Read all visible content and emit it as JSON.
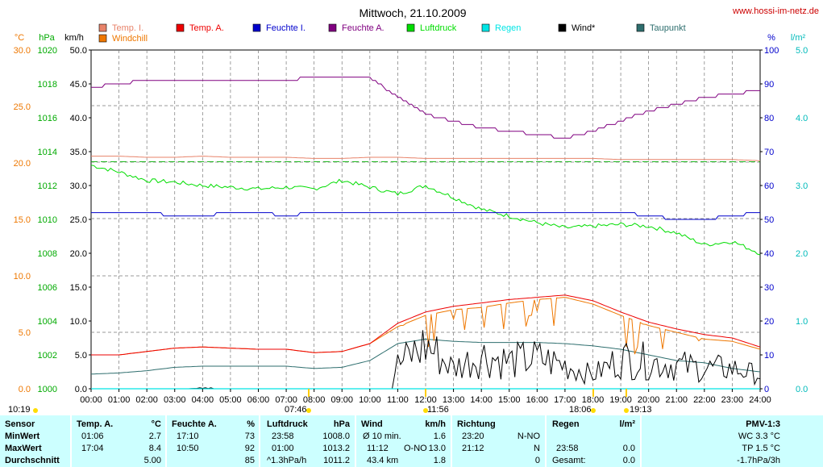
{
  "header": {
    "title": "Mittwoch, 21.10.2009",
    "website": "www.hossi-im-netz.de"
  },
  "chart_data": {
    "type": "line",
    "title": "Mittwoch, 21.10.2009",
    "axes": {
      "temp": {
        "label": "°C",
        "ticks": [
          "30.0",
          "25.0",
          "20.0",
          "15.0",
          "10.0",
          "5.0",
          "0.0"
        ]
      },
      "pressure": {
        "label": "hPa",
        "ticks": [
          "1020",
          "1018",
          "1016",
          "1014",
          "1012",
          "1010",
          "1008",
          "1006",
          "1004",
          "1002",
          "1000"
        ]
      },
      "wind": {
        "label": "km/h",
        "ticks": [
          "50.0",
          "45.0",
          "40.0",
          "35.0",
          "30.0",
          "25.0",
          "20.0",
          "15.0",
          "10.0",
          "5.0",
          "0.0"
        ]
      },
      "humidity": {
        "label": "%",
        "ticks": [
          "100",
          "90",
          "80",
          "70",
          "60",
          "50",
          "40",
          "30",
          "20",
          "10",
          "0"
        ]
      },
      "rain": {
        "label": "l/m²",
        "ticks": [
          "5.0",
          "4.0",
          "3.0",
          "2.0",
          "1.0",
          "0.0"
        ]
      }
    },
    "x_ticks": [
      "00:00",
      "01:00",
      "02:00",
      "03:00",
      "04:00",
      "05:00",
      "06:00",
      "07:00",
      "08:00",
      "09:00",
      "10:00",
      "11:00",
      "12:00",
      "13:00",
      "14:00",
      "15:00",
      "16:00",
      "17:00",
      "18:00",
      "19:00",
      "20:00",
      "21:00",
      "22:00",
      "23:00",
      "24:00"
    ],
    "legend": [
      {
        "name": "Temp. I.",
        "color": "#e8836a"
      },
      {
        "name": "Temp. A.",
        "color": "#ee0000"
      },
      {
        "name": "Feuchte I.",
        "color": "#0000cc"
      },
      {
        "name": "Feuchte A.",
        "color": "#800080"
      },
      {
        "name": "Luftdruck",
        "color": "#00dd00"
      },
      {
        "name": "Regen",
        "color": "#00e5e5"
      },
      {
        "name": "Wind*",
        "color": "#000000"
      },
      {
        "name": "Taupunkt",
        "color": "#2e6e6e"
      },
      {
        "name": "Windchill",
        "color": "#ee7700"
      }
    ],
    "x_hours": [
      0,
      1,
      2,
      3,
      4,
      5,
      6,
      7,
      8,
      9,
      10,
      11,
      12,
      13,
      14,
      15,
      16,
      17,
      18,
      19,
      20,
      21,
      22,
      23,
      24
    ],
    "series": [
      {
        "name": "Temp. I.",
        "unit": "°C",
        "values": [
          20.6,
          20.6,
          20.5,
          20.5,
          20.6,
          20.5,
          20.5,
          20.5,
          20.4,
          20.4,
          20.5,
          20.5,
          20.4,
          20.4,
          20.4,
          20.4,
          20.4,
          20.4,
          20.4,
          20.3,
          20.3,
          20.3,
          20.3,
          20.3,
          20.2
        ]
      },
      {
        "name": "Temp. A.",
        "unit": "°C",
        "values": [
          3.0,
          3.0,
          3.3,
          3.6,
          3.7,
          3.6,
          3.5,
          3.5,
          3.2,
          3.3,
          4.0,
          5.8,
          6.8,
          7.3,
          7.6,
          7.9,
          8.1,
          8.3,
          7.8,
          6.8,
          5.9,
          5.3,
          4.8,
          4.5,
          3.7
        ]
      },
      {
        "name": "Feuchte I.",
        "unit": "%",
        "values": [
          52,
          52,
          52,
          51,
          51,
          52,
          52,
          51,
          52,
          52,
          52,
          52,
          52,
          52,
          52,
          52,
          52,
          52,
          52,
          52,
          51,
          50,
          50,
          51,
          52
        ]
      },
      {
        "name": "Feuchte A.",
        "unit": "%",
        "values": [
          89,
          90,
          91,
          91,
          91,
          91,
          91,
          91,
          92,
          92,
          92,
          86,
          81,
          79,
          77,
          76,
          75,
          74,
          76,
          79,
          82,
          84,
          86,
          87,
          88
        ]
      },
      {
        "name": "Luftdruck",
        "unit": "hPa",
        "values": [
          1013.2,
          1012.8,
          1012.3,
          1012.2,
          1012.0,
          1011.9,
          1011.8,
          1011.9,
          1011.8,
          1012.3,
          1011.9,
          1011.5,
          1012.0,
          1011.3,
          1010.6,
          1010.2,
          1009.8,
          1009.5,
          1009.6,
          1009.7,
          1009.6,
          1009.2,
          1008.5,
          1008.7,
          1008.0
        ]
      },
      {
        "name": "Taupunkt",
        "unit": "°C",
        "values": [
          1.3,
          1.4,
          1.6,
          1.9,
          2.0,
          2.0,
          2.0,
          2.0,
          1.8,
          1.9,
          2.5,
          4.0,
          4.4,
          4.2,
          4.1,
          4.1,
          4.1,
          4.0,
          3.8,
          3.5,
          3.0,
          2.5,
          2.3,
          1.8,
          1.5
        ]
      },
      {
        "name": "Wind*",
        "unit": "km/h",
        "values": [
          0,
          0,
          0,
          0,
          0.5,
          0,
          0,
          0,
          0,
          0,
          0,
          3.5,
          6.5,
          3.0,
          5.0,
          4.0,
          4.5,
          3.5,
          2.0,
          4.5,
          4.0,
          3.5,
          3.0,
          3.0,
          2.0
        ]
      },
      {
        "name": "Windchill",
        "unit": "°C",
        "values": [
          3.0,
          3.0,
          3.3,
          3.6,
          3.7,
          3.6,
          3.5,
          3.5,
          3.2,
          3.3,
          4.0,
          5.5,
          6.5,
          7.0,
          7.2,
          7.6,
          7.9,
          8.1,
          7.5,
          6.5,
          5.6,
          5.0,
          4.4,
          4.2,
          3.5
        ]
      },
      {
        "name": "Regen",
        "unit": "l/m²",
        "values": [
          0,
          0,
          0,
          0,
          0,
          0,
          0,
          0,
          0,
          0,
          0,
          0,
          0,
          0,
          0,
          0,
          0,
          0,
          0,
          0,
          0,
          0,
          0,
          0,
          0
        ]
      }
    ],
    "markers": [
      {
        "label": "10:19",
        "kind": "sunrise-left"
      },
      {
        "label": "07:46",
        "kind": "sunrise"
      },
      {
        "label": "11:56",
        "kind": "noon"
      },
      {
        "label": "18:06",
        "kind": "sunset"
      },
      {
        "label": "19:13",
        "kind": "moonset"
      }
    ]
  },
  "table": {
    "row_labels": [
      "Sensor",
      "MinWert",
      "MaxWert",
      "Durchschnitt"
    ],
    "temp": {
      "head": "Temp. A.",
      "unit": "°C",
      "min_time": "01:06",
      "min": "2.7",
      "max_time": "17:04",
      "max": "8.4",
      "avg": "5.00"
    },
    "hum": {
      "head": "Feuchte A.",
      "unit": "%",
      "min_time": "17:10",
      "min": "73",
      "max_time": "10:50",
      "max": "92",
      "avg": "85"
    },
    "pres": {
      "head": "Luftdruck",
      "unit": "hPa",
      "min_time": "23:58",
      "min": "1008.0",
      "max_time": "01:00",
      "max": "1013.2",
      "trend": "^1.3hPa/h",
      "avg": "1011.2"
    },
    "wind": {
      "head": "Wind",
      "unit": "km/h",
      "r1_label": "Ø 10 min.",
      "r1": "1.6",
      "r2_time": "11:12",
      "r2_dir": "O-NO",
      "r2": "13.0",
      "r3_label": "43.4 km",
      "r3": "1.8"
    },
    "dir": {
      "head": "Richtung",
      "r1_time": "23:20",
      "r1": "N-NO",
      "r2_time": "21:12",
      "r2": "N",
      "r3": "0"
    },
    "rain": {
      "head": "Regen",
      "unit": "l/m²",
      "r2_time": "23:58",
      "r2": "0.0",
      "r3_label": "Gesamt:",
      "r3": "0.0"
    },
    "pmv": {
      "head": "PMV-1:3",
      "wc": "WC 3.3 °C",
      "tp": "TP 1.5 °C",
      "trend": "-1.7hPa/3h"
    }
  }
}
